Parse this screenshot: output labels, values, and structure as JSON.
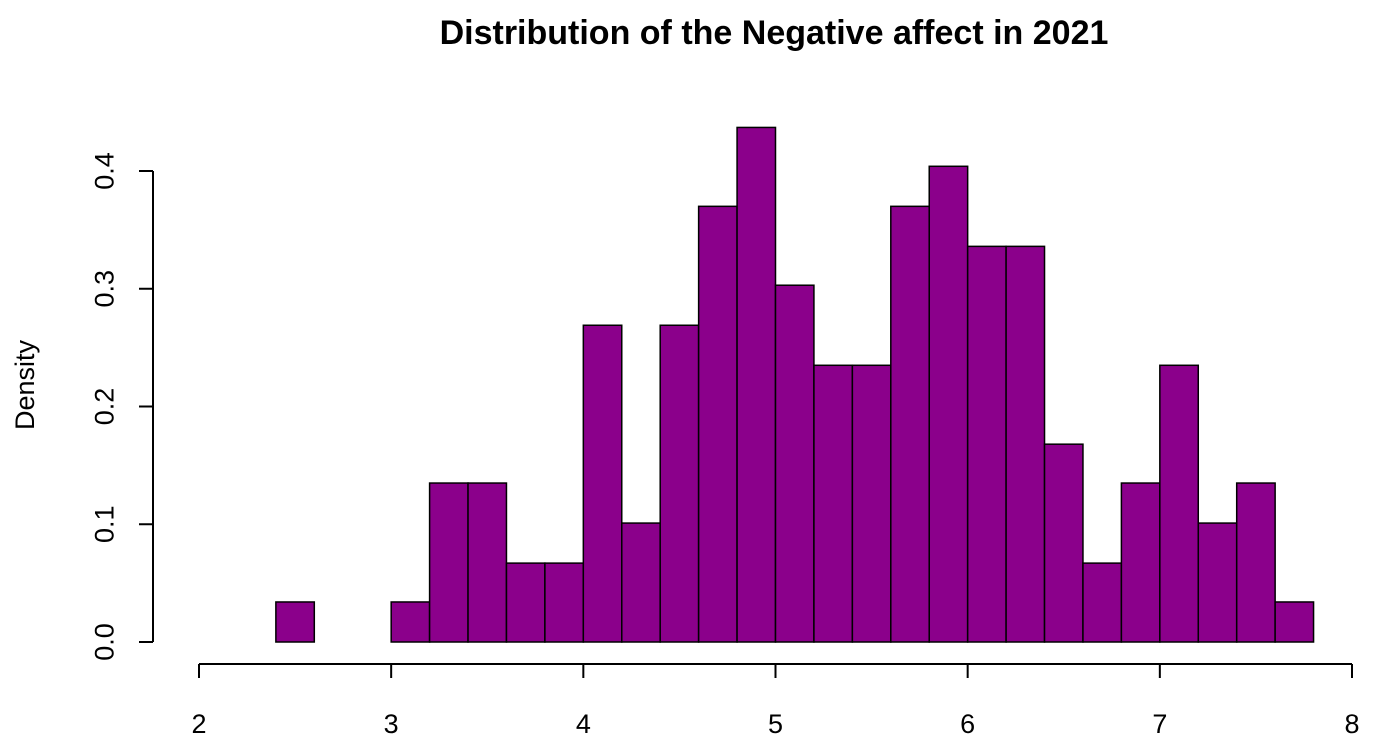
{
  "chart_data": {
    "type": "bar",
    "title": "Distribution of the Negative affect in 2021",
    "xlabel": "",
    "ylabel": "Density",
    "xlim": [
      2,
      8
    ],
    "ylim": [
      0,
      0.4
    ],
    "x_ticks": [
      "2",
      "3",
      "4",
      "5",
      "6",
      "7",
      "8"
    ],
    "y_ticks": [
      "0.0",
      "0.1",
      "0.2",
      "0.3",
      "0.4"
    ],
    "bin_width": 0.2,
    "bin_starts": [
      2.4,
      2.6,
      2.8,
      3.0,
      3.2,
      3.4,
      3.6,
      3.8,
      4.0,
      4.2,
      4.4,
      4.6,
      4.8,
      5.0,
      5.2,
      5.4,
      5.6,
      5.8,
      6.0,
      6.2,
      6.4,
      6.6,
      6.8,
      7.0,
      7.2,
      7.4,
      7.6
    ],
    "values": [
      0.034,
      0.0,
      0.0,
      0.034,
      0.135,
      0.135,
      0.067,
      0.067,
      0.269,
      0.101,
      0.269,
      0.37,
      0.437,
      0.303,
      0.235,
      0.235,
      0.37,
      0.404,
      0.336,
      0.336,
      0.168,
      0.067,
      0.135,
      0.235,
      0.101,
      0.135,
      0.034
    ],
    "bar_color": "#8B008B",
    "grid": false,
    "legend": "none"
  }
}
